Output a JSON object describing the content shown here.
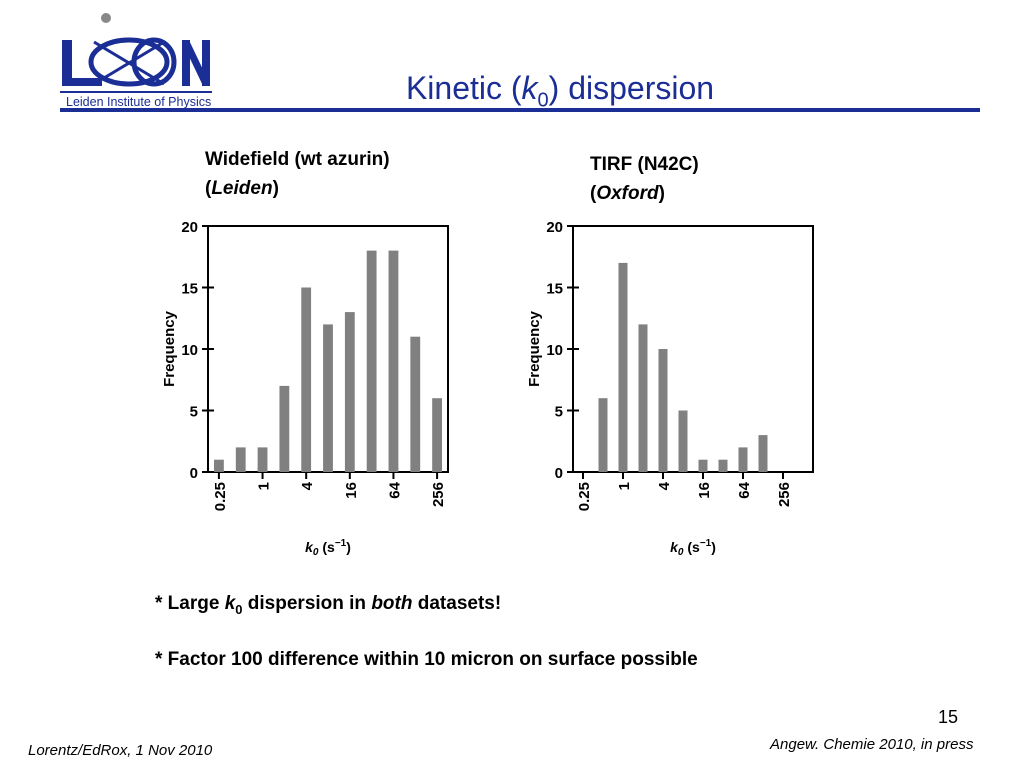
{
  "logo": {
    "text": "Leiden Institute of Physics"
  },
  "slide": {
    "title_pre": "Kinetic (",
    "title_k": "k",
    "title_sub": "0",
    "title_post": ") dispersion",
    "page_number": "15"
  },
  "captions": {
    "left_line1": "Widefield (wt azurin)",
    "left_open": "(",
    "left_italic": "Leiden",
    "left_close": ")",
    "right_line1": "TIRF (N42C)",
    "right_open": "(",
    "right_italic": "Oxford",
    "right_close": ")"
  },
  "bullets": {
    "b1_pre": "* Large ",
    "b1_k": "k",
    "b1_sub": "0",
    "b1_mid": " dispersion in ",
    "b1_em": "both",
    "b1_post": " datasets!",
    "b2": "* Factor 100 difference within 10 micron on surface possible"
  },
  "footer": {
    "left": "Lorentz/EdRox, 1 Nov 2010",
    "right": "Angew. Chemie 2010, in press"
  },
  "colors": {
    "title": "#1a2e96",
    "bar": "#808080",
    "axis": "#000000"
  },
  "chart_data": [
    {
      "type": "bar",
      "title": "",
      "ylabel": "Frequency",
      "xlabel_k": "k",
      "xlabel_sub": "0",
      "xlabel_unit_pre": " (s",
      "xlabel_exp": "−1",
      "xlabel_unit_post": ")",
      "ylim": [
        0,
        20
      ],
      "yticks": [
        0,
        5,
        10,
        15,
        20
      ],
      "xscale": "log2",
      "xticks": [
        0.25,
        1,
        4,
        16,
        64,
        256
      ],
      "xtick_labels": [
        "0.25",
        "1",
        "4",
        "16",
        "64",
        "256"
      ],
      "grid": false,
      "values": [
        1,
        2,
        2,
        7,
        15,
        12,
        13,
        18,
        18,
        11,
        6
      ]
    },
    {
      "type": "bar",
      "title": "",
      "ylabel": "Frequency",
      "xlabel_k": "k",
      "xlabel_sub": "0",
      "xlabel_unit_pre": " (s",
      "xlabel_exp": "−1",
      "xlabel_unit_post": ")",
      "ylim": [
        0,
        20
      ],
      "yticks": [
        0,
        5,
        10,
        15,
        20
      ],
      "xscale": "log2",
      "xticks": [
        0.25,
        1,
        4,
        16,
        64,
        256
      ],
      "xtick_labels": [
        "0.25",
        "1",
        "4",
        "16",
        "64",
        "256"
      ],
      "grid": false,
      "values": [
        0,
        6,
        17,
        12,
        10,
        5,
        1,
        1,
        2,
        3,
        0,
        0
      ]
    }
  ]
}
